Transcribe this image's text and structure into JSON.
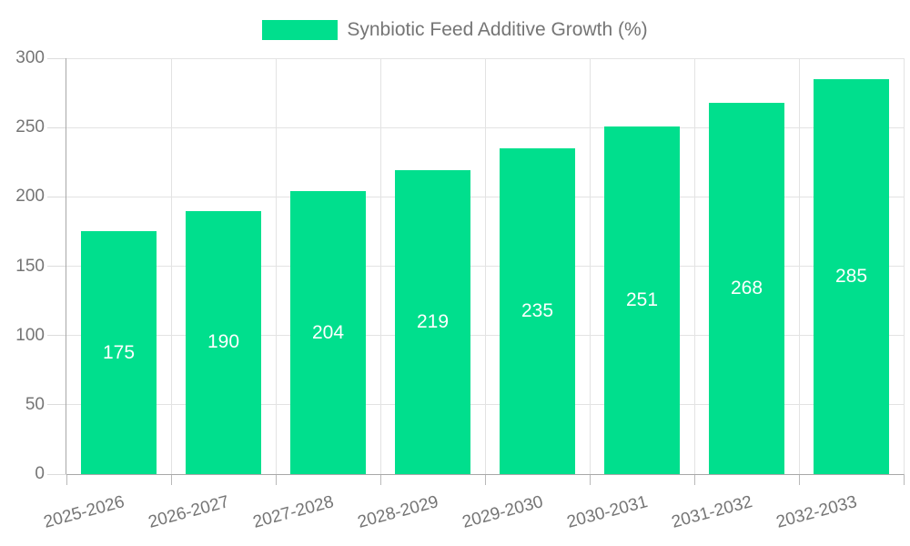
{
  "chart_data": {
    "type": "bar",
    "title": "Synbiotic Feed Additive Growth (%)",
    "categories": [
      "2025-2026",
      "2026-2027",
      "2027-2028",
      "2028-2029",
      "2029-2030",
      "2030-2031",
      "2031-2032",
      "2032-2033"
    ],
    "values": [
      175,
      190,
      204,
      219,
      235,
      251,
      268,
      285
    ],
    "xlabel": "",
    "ylabel": "",
    "ylim": [
      0,
      300
    ],
    "yticks": [
      0,
      50,
      100,
      150,
      200,
      250,
      300
    ],
    "grid": true,
    "legend_position": "top",
    "value_labels": "inside-center"
  },
  "legend": {
    "label": "Synbiotic Feed Additive Growth (%)"
  },
  "colors": {
    "background": "#FFFFFF",
    "bar": "#00DF8D",
    "grid": "#E3E3E3",
    "axis": "#A8A8A8",
    "tick_y": "#DCDCDC",
    "tick_x": "#B9B9B9",
    "text": "#757575",
    "value_label": "#FFFFFF"
  }
}
